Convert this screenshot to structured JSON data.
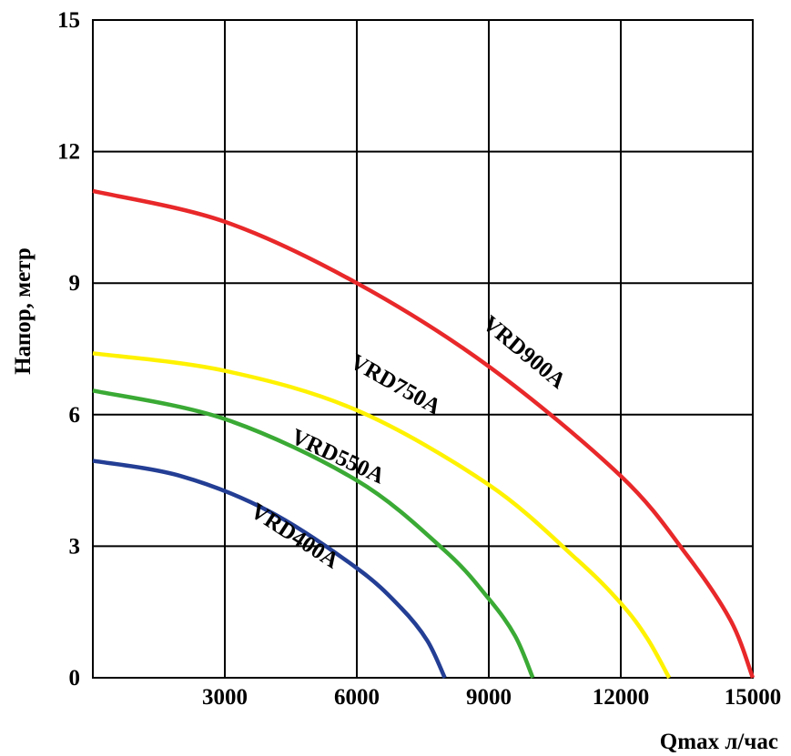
{
  "chart_data": {
    "type": "line",
    "title": "",
    "xlabel": "Qmax л/час",
    "ylabel": "Напор, метр",
    "xlim": [
      0,
      15000
    ],
    "ylim": [
      0,
      15
    ],
    "xticks": [
      {
        "value": 3000,
        "label": "3000"
      },
      {
        "value": 6000,
        "label": "6000"
      },
      {
        "value": 9000,
        "label": "9000"
      },
      {
        "value": 12000,
        "label": "12000"
      },
      {
        "value": 15000,
        "label": "15000"
      }
    ],
    "yticks": [
      {
        "value": 0,
        "label": "0"
      },
      {
        "value": 3,
        "label": "3"
      },
      {
        "value": 6,
        "label": "6"
      },
      {
        "value": 9,
        "label": "9"
      },
      {
        "value": 12,
        "label": "12"
      },
      {
        "value": 15,
        "label": "15"
      }
    ],
    "grid": true,
    "series": [
      {
        "name": "VRD900A",
        "color": "#e8282a",
        "x": [
          0,
          3000,
          6000,
          9000,
          12000,
          13500,
          14500,
          15000
        ],
        "y": [
          11.1,
          10.4,
          9.0,
          7.1,
          4.6,
          2.8,
          1.3,
          0
        ],
        "label_x": 9700,
        "label_y": 7.3
      },
      {
        "name": "VRD750A",
        "color": "#fff200",
        "x": [
          0,
          3000,
          6000,
          9000,
          11000,
          12000,
          12600,
          13100
        ],
        "y": [
          7.4,
          7.0,
          6.1,
          4.4,
          2.7,
          1.7,
          0.9,
          0
        ],
        "label_x": 6800,
        "label_y": 6.55
      },
      {
        "name": "VRD550A",
        "color": "#3aaa35",
        "x": [
          0,
          3000,
          6000,
          8000,
          9000,
          9600,
          10000
        ],
        "y": [
          6.55,
          5.9,
          4.5,
          2.9,
          1.8,
          0.95,
          0
        ],
        "label_x": 5500,
        "label_y": 4.9
      },
      {
        "name": "VRD400A",
        "color": "#233e94",
        "x": [
          0,
          2000,
          4000,
          6000,
          7000,
          7600,
          8000
        ],
        "y": [
          4.95,
          4.6,
          3.8,
          2.5,
          1.6,
          0.85,
          0
        ],
        "label_x": 4500,
        "label_y": 3.1
      }
    ]
  }
}
